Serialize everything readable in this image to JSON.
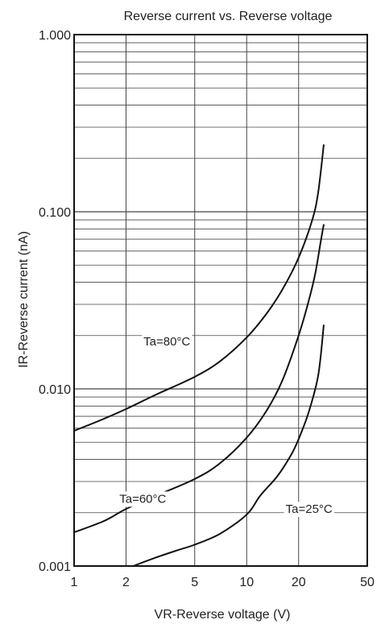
{
  "chart_data": {
    "type": "line",
    "title": "Reverse current vs. Reverse voltage",
    "xlabel": "VR-Reverse voltage (V)",
    "ylabel": "IR-Reverse current (nA)",
    "x_scale": "log",
    "y_scale": "log",
    "xlim": [
      1,
      50
    ],
    "ylim": [
      0.001,
      1.0
    ],
    "x_ticks": [
      1,
      2,
      5,
      10,
      20,
      50
    ],
    "x_tick_labels": [
      "1",
      "2",
      "5",
      "10",
      "20",
      "50"
    ],
    "y_ticks": [
      0.001,
      0.01,
      0.1,
      1.0
    ],
    "y_tick_labels": [
      "0.001",
      "0.010",
      "0.100",
      "1.000"
    ],
    "grid": true,
    "series": [
      {
        "name": "Ta=80°C",
        "x": [
          1,
          1.5,
          2,
          3,
          5,
          7,
          10,
          13,
          16,
          20,
          24,
          26,
          28
        ],
        "y": [
          0.0058,
          0.0068,
          0.0077,
          0.0093,
          0.0117,
          0.0143,
          0.0195,
          0.0265,
          0.036,
          0.055,
          0.09,
          0.13,
          0.24
        ]
      },
      {
        "name": "Ta=60°C",
        "x": [
          1,
          1.5,
          2,
          3,
          5,
          7,
          10,
          13,
          16,
          20,
          23,
          25,
          27,
          28
        ],
        "y": [
          0.00155,
          0.0018,
          0.0021,
          0.0025,
          0.0031,
          0.0038,
          0.0053,
          0.0075,
          0.011,
          0.02,
          0.032,
          0.045,
          0.07,
          0.085
        ]
      },
      {
        "name": "Ta=25°C",
        "x": [
          2.2,
          3,
          4,
          5,
          7,
          10,
          12,
          15,
          18,
          20,
          23,
          26,
          28
        ],
        "y": [
          0.001,
          0.00112,
          0.00123,
          0.00132,
          0.00152,
          0.00195,
          0.0025,
          0.0032,
          0.0042,
          0.0052,
          0.0075,
          0.012,
          0.023
        ]
      }
    ],
    "annotations": [
      "Ta=80°C",
      "Ta=60°C",
      "Ta=25°C"
    ]
  }
}
